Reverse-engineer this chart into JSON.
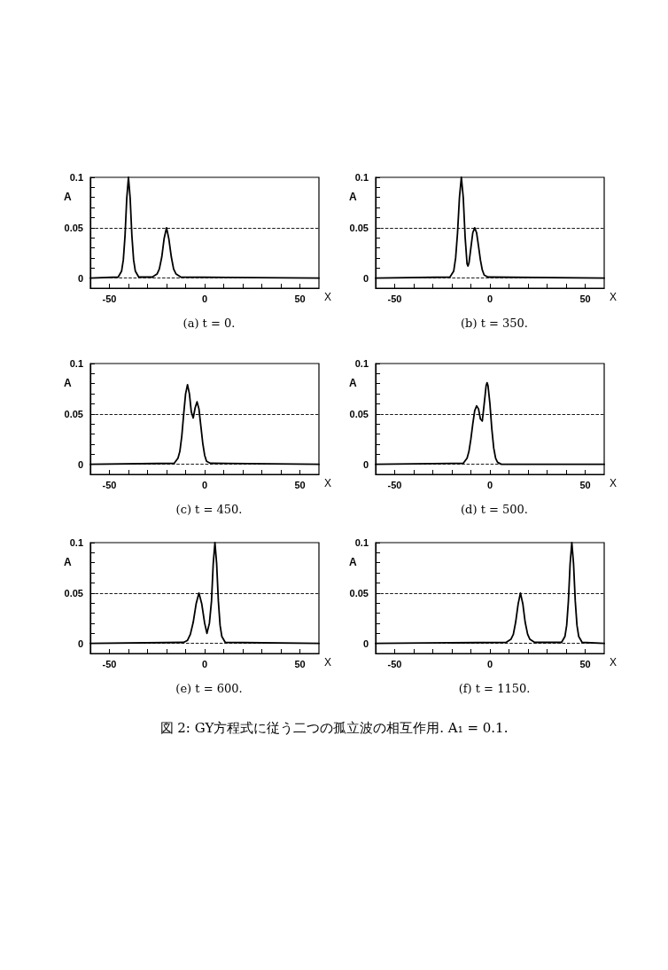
{
  "chart_data": [
    {
      "type": "line",
      "title": "(a) t = 0.",
      "xlabel": "X",
      "ylabel": "A",
      "color": "#000000",
      "marker": "none",
      "x": [
        -60,
        -45.4,
        -43.6,
        -42.7,
        -41.8,
        -40.9,
        -40,
        -39.1,
        -38.2,
        -37.3,
        -36.4,
        -34.6,
        -27.5,
        -25,
        -23.8,
        -22.5,
        -21.3,
        -20,
        -18.8,
        -17.5,
        -16.3,
        -15,
        -12.5,
        60
      ],
      "values": [
        0,
        0.001,
        0.007,
        0.018,
        0.042,
        0.079,
        0.1,
        0.079,
        0.042,
        0.018,
        0.007,
        0.001,
        0.001,
        0.004,
        0.009,
        0.021,
        0.039,
        0.05,
        0.039,
        0.021,
        0.009,
        0.004,
        0.001,
        0
      ],
      "xlim": [
        -60,
        60
      ],
      "xticks": [
        -50,
        {
          "value": -40,
          "label": null
        },
        {
          "value": -30,
          "label": null
        },
        {
          "value": -20,
          "label": null
        },
        {
          "value": -10,
          "label": null
        },
        0,
        {
          "value": 10,
          "label": null
        },
        {
          "value": 20,
          "label": null
        },
        {
          "value": 30,
          "label": null
        },
        {
          "value": 40,
          "label": null
        },
        50
      ],
      "ylim": [
        -0.01,
        0.1
      ],
      "yticks": [
        0,
        {
          "value": 0.01,
          "label": null
        },
        {
          "value": 0.02,
          "label": null
        },
        {
          "value": 0.03,
          "label": null
        },
        {
          "value": 0.04,
          "label": null
        },
        0.05,
        {
          "value": 0.06,
          "label": null
        },
        {
          "value": 0.07,
          "label": null
        },
        {
          "value": 0.08,
          "label": null
        },
        {
          "value": 0.09,
          "label": null
        },
        0.1
      ],
      "ref_lines": [
        {
          "axis": "y",
          "value": 0.05,
          "line_style": "dashed"
        },
        {
          "axis": "y",
          "value": 0,
          "line_style": "dashed"
        }
      ]
    },
    {
      "type": "line",
      "title": "(b) t = 350.",
      "xlabel": "X",
      "ylabel": "A",
      "color": "#000000",
      "marker": "none",
      "x": [
        -60,
        -21,
        -19,
        -18,
        -17,
        -16,
        -15,
        -14,
        -13,
        -12,
        -11.5,
        -11,
        -10,
        -9,
        -8,
        -7,
        -6,
        -5,
        -4,
        -3,
        -1,
        60
      ],
      "values": [
        0,
        0.001,
        0.007,
        0.02,
        0.045,
        0.08,
        0.1,
        0.08,
        0.04,
        0.014,
        0.012,
        0.015,
        0.03,
        0.045,
        0.05,
        0.045,
        0.032,
        0.018,
        0.008,
        0.003,
        0.001,
        0
      ],
      "xlim": [
        -60,
        60
      ],
      "xticks": [
        -50,
        {
          "value": -40,
          "label": null
        },
        {
          "value": -30,
          "label": null
        },
        {
          "value": -20,
          "label": null
        },
        {
          "value": -10,
          "label": null
        },
        0,
        {
          "value": 10,
          "label": null
        },
        {
          "value": 20,
          "label": null
        },
        {
          "value": 30,
          "label": null
        },
        {
          "value": 40,
          "label": null
        },
        50
      ],
      "ylim": [
        -0.01,
        0.1
      ],
      "yticks": [
        0,
        {
          "value": 0.01,
          "label": null
        },
        {
          "value": 0.02,
          "label": null
        },
        {
          "value": 0.03,
          "label": null
        },
        {
          "value": 0.04,
          "label": null
        },
        0.05,
        {
          "value": 0.06,
          "label": null
        },
        {
          "value": 0.07,
          "label": null
        },
        {
          "value": 0.08,
          "label": null
        },
        {
          "value": 0.09,
          "label": null
        },
        0.1
      ],
      "ref_lines": [
        {
          "axis": "y",
          "value": 0.05,
          "line_style": "dashed"
        },
        {
          "axis": "y",
          "value": 0,
          "line_style": "dashed"
        }
      ]
    },
    {
      "type": "line",
      "title": "(c) t = 450.",
      "xlabel": "X",
      "ylabel": "A",
      "color": "#000000",
      "marker": "none",
      "x": [
        -60,
        -16,
        -14,
        -13,
        -12,
        -11,
        -10,
        -9,
        -8,
        -7,
        -6,
        -5,
        -4,
        -3,
        -2,
        -1,
        0,
        1,
        3,
        60
      ],
      "values": [
        0,
        0.001,
        0.006,
        0.013,
        0.028,
        0.05,
        0.07,
        0.079,
        0.07,
        0.052,
        0.046,
        0.056,
        0.062,
        0.055,
        0.038,
        0.021,
        0.009,
        0.003,
        0.001,
        0
      ],
      "xlim": [
        -60,
        60
      ],
      "xticks": [
        -50,
        {
          "value": -40,
          "label": null
        },
        {
          "value": -30,
          "label": null
        },
        {
          "value": -20,
          "label": null
        },
        {
          "value": -10,
          "label": null
        },
        0,
        {
          "value": 10,
          "label": null
        },
        {
          "value": 20,
          "label": null
        },
        {
          "value": 30,
          "label": null
        },
        {
          "value": 40,
          "label": null
        },
        50
      ],
      "ylim": [
        -0.01,
        0.1
      ],
      "yticks": [
        0,
        {
          "value": 0.01,
          "label": null
        },
        {
          "value": 0.02,
          "label": null
        },
        {
          "value": 0.03,
          "label": null
        },
        {
          "value": 0.04,
          "label": null
        },
        0.05,
        {
          "value": 0.06,
          "label": null
        },
        {
          "value": 0.07,
          "label": null
        },
        {
          "value": 0.08,
          "label": null
        },
        {
          "value": 0.09,
          "label": null
        },
        0.1
      ],
      "ref_lines": [
        {
          "axis": "y",
          "value": 0.05,
          "line_style": "dashed"
        },
        {
          "axis": "y",
          "value": 0,
          "line_style": "dashed"
        }
      ]
    },
    {
      "type": "line",
      "title": "(d) t = 500.",
      "xlabel": "X",
      "ylabel": "A",
      "color": "#000000",
      "marker": "none",
      "x": [
        -60,
        -14,
        -12,
        -11,
        -10,
        -9,
        -8,
        -7,
        -6,
        -5,
        -4,
        -3,
        -2,
        -1.5,
        -1,
        0,
        1,
        2,
        3,
        4,
        6,
        60
      ],
      "values": [
        0,
        0.001,
        0.006,
        0.013,
        0.025,
        0.04,
        0.053,
        0.058,
        0.055,
        0.045,
        0.043,
        0.06,
        0.078,
        0.081,
        0.078,
        0.06,
        0.035,
        0.016,
        0.006,
        0.002,
        0,
        0
      ],
      "xlim": [
        -60,
        60
      ],
      "xticks": [
        -50,
        {
          "value": -40,
          "label": null
        },
        {
          "value": -30,
          "label": null
        },
        {
          "value": -20,
          "label": null
        },
        {
          "value": -10,
          "label": null
        },
        0,
        {
          "value": 10,
          "label": null
        },
        {
          "value": 20,
          "label": null
        },
        {
          "value": 30,
          "label": null
        },
        {
          "value": 40,
          "label": null
        },
        50
      ],
      "ylim": [
        -0.01,
        0.1
      ],
      "yticks": [
        0,
        {
          "value": 0.01,
          "label": null
        },
        {
          "value": 0.02,
          "label": null
        },
        {
          "value": 0.03,
          "label": null
        },
        {
          "value": 0.04,
          "label": null
        },
        0.05,
        {
          "value": 0.06,
          "label": null
        },
        {
          "value": 0.07,
          "label": null
        },
        {
          "value": 0.08,
          "label": null
        },
        {
          "value": 0.09,
          "label": null
        },
        0.1
      ],
      "ref_lines": [
        {
          "axis": "y",
          "value": 0.05,
          "line_style": "dashed"
        },
        {
          "axis": "y",
          "value": 0,
          "line_style": "dashed"
        }
      ]
    },
    {
      "type": "line",
      "title": "(e) t = 600.",
      "xlabel": "X",
      "ylabel": "A",
      "color": "#000000",
      "marker": "none",
      "x": [
        -60,
        -11,
        -9,
        -7.5,
        -6,
        -4.5,
        -3,
        -1.5,
        0,
        1.2,
        2.5,
        3.6,
        4.5,
        5.4,
        6.3,
        7.2,
        8.1,
        9,
        10.8,
        60
      ],
      "values": [
        0,
        0.001,
        0.003,
        0.009,
        0.021,
        0.039,
        0.05,
        0.039,
        0.02,
        0.01,
        0.02,
        0.042,
        0.079,
        0.1,
        0.079,
        0.042,
        0.018,
        0.007,
        0.001,
        0
      ],
      "xlim": [
        -60,
        60
      ],
      "xticks": [
        -50,
        {
          "value": -40,
          "label": null
        },
        {
          "value": -30,
          "label": null
        },
        {
          "value": -20,
          "label": null
        },
        {
          "value": -10,
          "label": null
        },
        0,
        {
          "value": 10,
          "label": null
        },
        {
          "value": 20,
          "label": null
        },
        {
          "value": 30,
          "label": null
        },
        {
          "value": 40,
          "label": null
        },
        50
      ],
      "ylim": [
        -0.01,
        0.1
      ],
      "yticks": [
        0,
        {
          "value": 0.01,
          "label": null
        },
        {
          "value": 0.02,
          "label": null
        },
        {
          "value": 0.03,
          "label": null
        },
        {
          "value": 0.04,
          "label": null
        },
        0.05,
        {
          "value": 0.06,
          "label": null
        },
        {
          "value": 0.07,
          "label": null
        },
        {
          "value": 0.08,
          "label": null
        },
        {
          "value": 0.09,
          "label": null
        },
        0.1
      ],
      "ref_lines": [
        {
          "axis": "y",
          "value": 0.05,
          "line_style": "dashed"
        },
        {
          "axis": "y",
          "value": 0,
          "line_style": "dashed"
        }
      ]
    },
    {
      "type": "line",
      "title": "(f) t = 1150.",
      "xlabel": "X",
      "ylabel": "A",
      "color": "#000000",
      "marker": "none",
      "x": [
        -60,
        8.5,
        11,
        12.3,
        13.5,
        14.8,
        16,
        17.3,
        18.5,
        19.8,
        21,
        23.5,
        37.6,
        39.4,
        40.3,
        41.2,
        42.1,
        43,
        43.9,
        44.8,
        45.7,
        46.6,
        48.4,
        60
      ],
      "values": [
        0,
        0.001,
        0.004,
        0.009,
        0.021,
        0.039,
        0.05,
        0.039,
        0.021,
        0.009,
        0.004,
        0.001,
        0.001,
        0.007,
        0.018,
        0.042,
        0.079,
        0.1,
        0.079,
        0.042,
        0.018,
        0.007,
        0.001,
        0
      ],
      "xlim": [
        -60,
        60
      ],
      "xticks": [
        -50,
        {
          "value": -40,
          "label": null
        },
        {
          "value": -30,
          "label": null
        },
        {
          "value": -20,
          "label": null
        },
        {
          "value": -10,
          "label": null
        },
        0,
        {
          "value": 10,
          "label": null
        },
        {
          "value": 20,
          "label": null
        },
        {
          "value": 30,
          "label": null
        },
        {
          "value": 40,
          "label": null
        },
        50
      ],
      "ylim": [
        -0.01,
        0.1
      ],
      "yticks": [
        0,
        {
          "value": 0.01,
          "label": null
        },
        {
          "value": 0.02,
          "label": null
        },
        {
          "value": 0.03,
          "label": null
        },
        {
          "value": 0.04,
          "label": null
        },
        0.05,
        {
          "value": 0.06,
          "label": null
        },
        {
          "value": 0.07,
          "label": null
        },
        {
          "value": 0.08,
          "label": null
        },
        {
          "value": 0.09,
          "label": null
        },
        0.1
      ],
      "ref_lines": [
        {
          "axis": "y",
          "value": 0.05,
          "line_style": "dashed"
        },
        {
          "axis": "y",
          "value": 0,
          "line_style": "dashed"
        }
      ],
      "annotations": [
        "図 2: GY方程式に従う二つの孤立波の相互作用. A₁ = 0.1."
      ]
    }
  ]
}
